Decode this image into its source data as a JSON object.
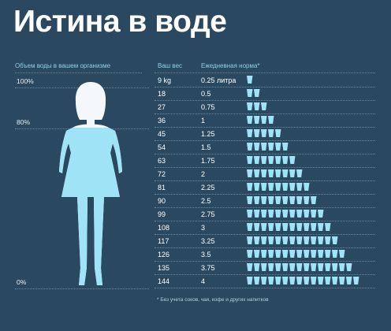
{
  "title": "Истина в воде",
  "left_panel": {
    "heading": "Объем воды в вашем организме",
    "levels": [
      "100%",
      "80%",
      "0%"
    ]
  },
  "table": {
    "col_weight": "Ваш вес",
    "col_norm": "Ежедневная норма*",
    "rows": [
      {
        "weight": "9 kg",
        "norm": "0.25 литра",
        "cups": 1
      },
      {
        "weight": "18",
        "norm": "0.5",
        "cups": 2
      },
      {
        "weight": "27",
        "norm": "0.75",
        "cups": 3
      },
      {
        "weight": "36",
        "norm": "1",
        "cups": 4
      },
      {
        "weight": "45",
        "norm": "1.25",
        "cups": 5
      },
      {
        "weight": "54",
        "norm": "1.5",
        "cups": 6
      },
      {
        "weight": "63",
        "norm": "1.75",
        "cups": 7
      },
      {
        "weight": "72",
        "norm": "2",
        "cups": 8
      },
      {
        "weight": "81",
        "norm": "2.25",
        "cups": 9
      },
      {
        "weight": "90",
        "norm": "2.5",
        "cups": 10
      },
      {
        "weight": "99",
        "norm": "2.75",
        "cups": 11
      },
      {
        "weight": "108",
        "norm": "3",
        "cups": 12
      },
      {
        "weight": "117",
        "norm": "3.25",
        "cups": 13
      },
      {
        "weight": "126",
        "norm": "3.5",
        "cups": 14
      },
      {
        "weight": "135",
        "norm": "3.75",
        "cups": 15
      },
      {
        "weight": "144",
        "norm": "4",
        "cups": 16
      }
    ]
  },
  "footnote": "* Без учета соков, чая, кофе и других напитков",
  "colors": {
    "background": "#2a4960",
    "water": "#9fe3f6",
    "accent_text": "#8fd0e8"
  }
}
